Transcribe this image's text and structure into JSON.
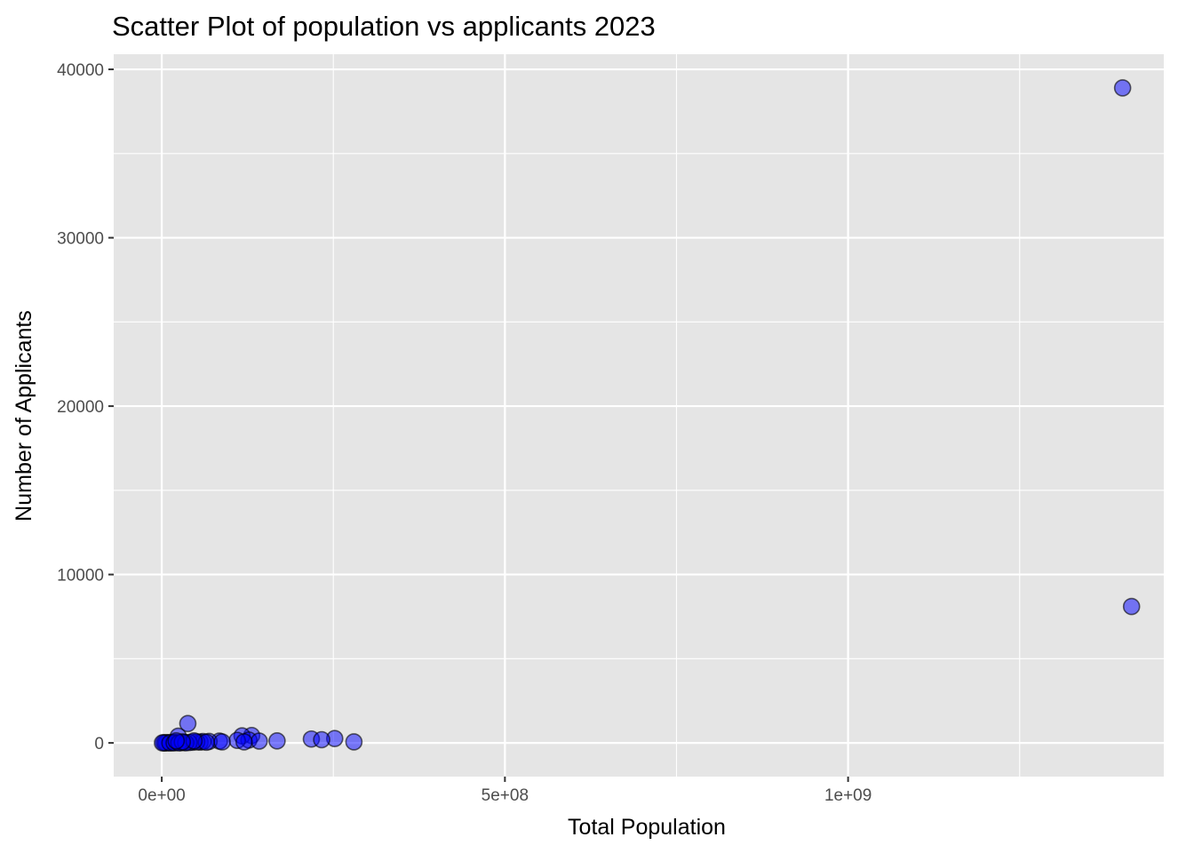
{
  "chart_data": {
    "type": "scatter",
    "title": "Scatter Plot of population vs applicants 2023",
    "xlabel": "Total Population",
    "ylabel": "Number of Applicants",
    "xlim": [
      -70000000,
      1460000000
    ],
    "ylim": [
      -2000,
      40900
    ],
    "x_major_ticks": [
      0,
      500000000,
      1000000000
    ],
    "x_tick_labels": [
      "0e+00",
      "5e+08",
      "1e+09"
    ],
    "x_minor_ticks": [
      250000000,
      750000000,
      1250000000
    ],
    "y_major_ticks": [
      0,
      10000,
      20000,
      30000,
      40000
    ],
    "y_tick_labels": [
      "0",
      "10000",
      "20000",
      "30000",
      "40000"
    ],
    "y_minor_ticks": [
      5000,
      15000,
      25000,
      35000
    ],
    "grid": true,
    "point_color": "#0000ff",
    "point_outline": "#000000",
    "point_opacity": 0.5,
    "panel_background": "#e5e5e5",
    "grid_color": "#ffffff",
    "points": [
      {
        "x": 1400000000,
        "y": 38900
      },
      {
        "x": 1413000000,
        "y": 8100
      },
      {
        "x": 38000000,
        "y": 1150
      },
      {
        "x": 131000000,
        "y": 440
      },
      {
        "x": 117000000,
        "y": 420
      },
      {
        "x": 24000000,
        "y": 400
      },
      {
        "x": 252000000,
        "y": 260
      },
      {
        "x": 218000000,
        "y": 230
      },
      {
        "x": 233000000,
        "y": 190
      },
      {
        "x": 127000000,
        "y": 170
      },
      {
        "x": 110000000,
        "y": 150
      },
      {
        "x": 168000000,
        "y": 120
      },
      {
        "x": 142000000,
        "y": 110
      },
      {
        "x": 84000000,
        "y": 110
      },
      {
        "x": 69000000,
        "y": 90
      },
      {
        "x": 120000000,
        "y": 60
      },
      {
        "x": 280000000,
        "y": 60
      },
      {
        "x": 56000000,
        "y": 50
      },
      {
        "x": 45000000,
        "y": 40
      },
      {
        "x": 33000000,
        "y": 30
      },
      {
        "x": 20000000,
        "y": 20
      },
      {
        "x": 10000000,
        "y": 15
      },
      {
        "x": 3000000,
        "y": 10
      },
      {
        "x": 60000000,
        "y": 80
      },
      {
        "x": 51000000,
        "y": 60
      },
      {
        "x": 40000000,
        "y": 25
      },
      {
        "x": 28000000,
        "y": 15
      },
      {
        "x": 15000000,
        "y": 10
      },
      {
        "x": 7000000,
        "y": 5
      },
      {
        "x": 5000000,
        "y": 0
      },
      {
        "x": 1000000,
        "y": 0
      },
      {
        "x": 12000000,
        "y": 0
      },
      {
        "x": 18000000,
        "y": 5
      },
      {
        "x": 25000000,
        "y": 0
      },
      {
        "x": 35000000,
        "y": 5
      },
      {
        "x": 65000000,
        "y": 40
      },
      {
        "x": 88000000,
        "y": 60
      },
      {
        "x": 47000000,
        "y": 120
      },
      {
        "x": 30000000,
        "y": 60
      },
      {
        "x": 21000000,
        "y": 120
      }
    ]
  }
}
